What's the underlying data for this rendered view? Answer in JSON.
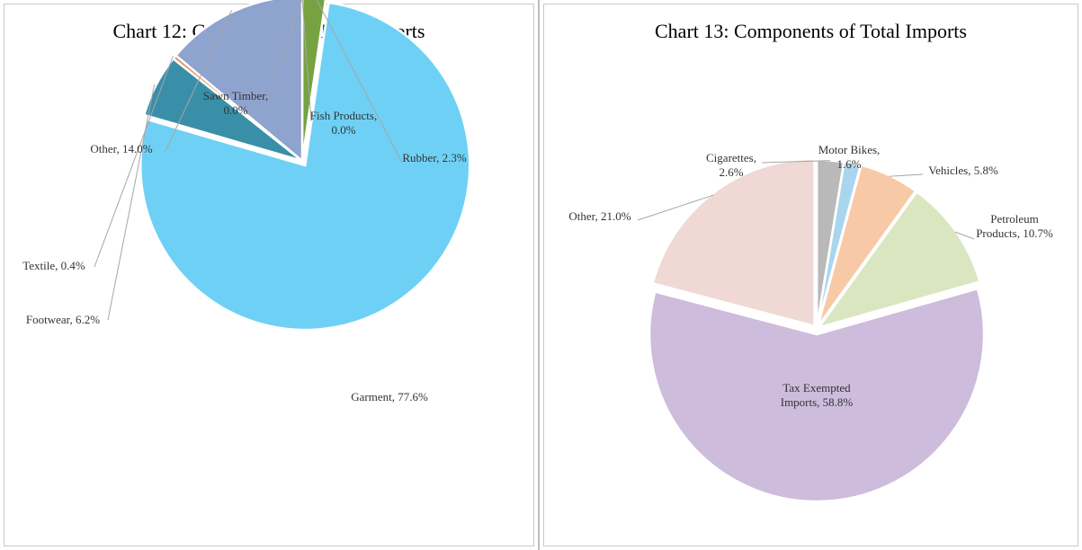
{
  "chart_data": [
    {
      "type": "pie",
      "title": "Chart 12: Components of Total Exports",
      "slices": [
        {
          "name": "Rubber",
          "value": 2.3,
          "label_text": "2.3%",
          "color": "#76a23f"
        },
        {
          "name": "Garment",
          "value": 77.6,
          "label_text": "77.6%",
          "color": "#6fd0f5"
        },
        {
          "name": "Footwear",
          "value": 6.2,
          "label_text": "6.2%",
          "color": "#3a8fa8"
        },
        {
          "name": "Textile",
          "value": 0.4,
          "label_text": "0.4%",
          "color": "#e38a50"
        },
        {
          "name": "Other",
          "value": 14.0,
          "label_text": "14.0%",
          "color": "#8fa3cf"
        },
        {
          "name": "Sawn Timber",
          "value": 0.0,
          "label_text": "0.0%",
          "color": "#b0b0b0"
        },
        {
          "name": "Fish Products",
          "value": 0.0,
          "label_text": "0.0%",
          "color": "#999999"
        }
      ]
    },
    {
      "type": "pie",
      "title": "Chart 13: Components of Total Imports",
      "slices": [
        {
          "name": "Cigarettes",
          "value": 2.6,
          "label_text": "2.6%",
          "color": "#b9b9b9"
        },
        {
          "name": "Motor Bikes",
          "value": 1.6,
          "label_text": "1.6%",
          "color": "#a9d6ee"
        },
        {
          "name": "Vehicles",
          "value": 5.8,
          "label_text": "5.8%",
          "color": "#f8c9a6"
        },
        {
          "name": "Petroleum Products",
          "value": 10.7,
          "label_text": "10.7%",
          "color": "#d9e6bf"
        },
        {
          "name": "Tax Exempted Imports",
          "value": 58.8,
          "label_text": "58.8%",
          "color": "#cdbcdc"
        },
        {
          "name": "Other",
          "value": 21.0,
          "label_text": "21.0%",
          "color": "#f0d8d4"
        }
      ]
    }
  ]
}
